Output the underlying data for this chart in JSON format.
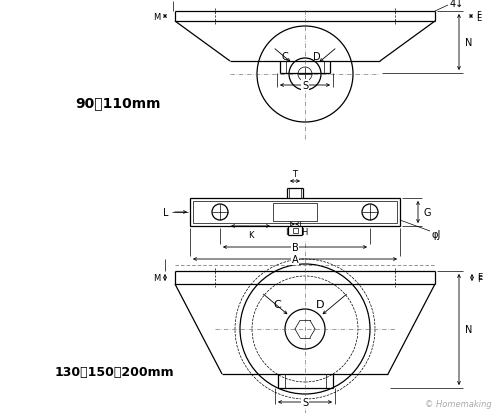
{
  "bg_color": "#ffffff",
  "line_color": "#000000",
  "label_90_110": "90・110mm",
  "label_130_150_200": "130・150・200mm",
  "watermark": "© Homemaking"
}
